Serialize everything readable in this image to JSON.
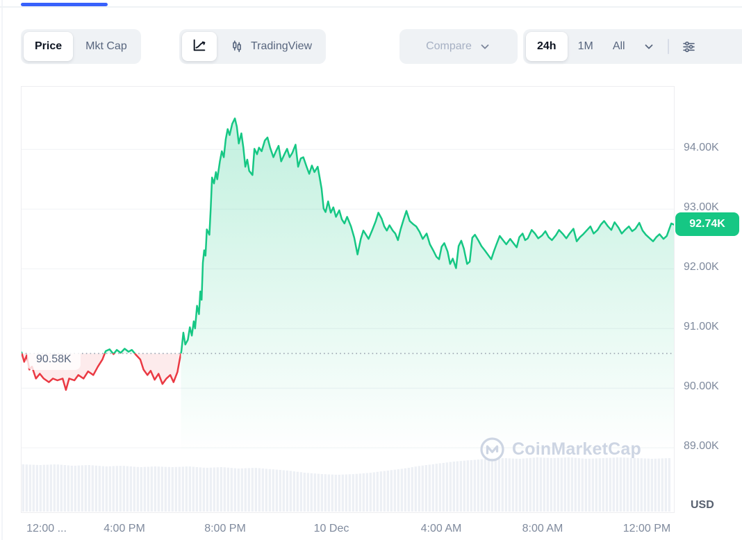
{
  "toolbar": {
    "metric_toggle": {
      "options": [
        "Price",
        "Mkt Cap"
      ],
      "active": "Price"
    },
    "chart_type_toggle": {
      "options": [
        "line-chart",
        "tradingview"
      ],
      "active": "line-chart",
      "tradingview_label": "TradingView"
    },
    "compare": {
      "label": "Compare"
    },
    "range_toggle": {
      "options": [
        "24h",
        "1M",
        "All"
      ],
      "active": "24h"
    }
  },
  "chart_data": {
    "type": "line",
    "unit": "USD",
    "watermark": "CoinMarketCap",
    "ylim": [
      87.92,
      95.05
    ],
    "baseline": {
      "price": 90.58,
      "label": "90.58K"
    },
    "last": {
      "price": 92.74,
      "label": "92.74K"
    },
    "y_ticks": [
      {
        "label": "94.00K",
        "value": 94
      },
      {
        "label": "93.00K",
        "value": 93
      },
      {
        "label": "92.00K",
        "value": 92
      },
      {
        "label": "91.00K",
        "value": 91
      },
      {
        "label": "90.00K",
        "value": 90
      },
      {
        "label": "89.00K",
        "value": 89
      }
    ],
    "x_ticks": [
      {
        "label": "12:00 ...",
        "t": 0.039
      },
      {
        "label": "4:00 PM",
        "t": 0.159
      },
      {
        "label": "8:00 PM",
        "t": 0.313
      },
      {
        "label": "10 Dec",
        "t": 0.476
      },
      {
        "label": "4:00 AM",
        "t": 0.644
      },
      {
        "label": "8:00 AM",
        "t": 0.8
      },
      {
        "label": "12:00 PM",
        "t": 0.959
      }
    ],
    "colors": {
      "up": "#16c784",
      "down": "#ea3943",
      "up_fill_top": "rgba(22,199,132,0.24)",
      "up_fill_bottom": "rgba(22,199,132,0)",
      "down_fill": "rgba(234,57,67,0.10)",
      "grid": "#f0f2f5",
      "volume": "#edf0f5",
      "baseline_dots": "#9aa3b0",
      "accent_blue": "#3861fb"
    },
    "points": [
      [
        0.0,
        90.6
      ],
      [
        0.004,
        90.44
      ],
      [
        0.008,
        90.55
      ],
      [
        0.012,
        90.31
      ],
      [
        0.016,
        90.36
      ],
      [
        0.022,
        90.16
      ],
      [
        0.028,
        90.24
      ],
      [
        0.034,
        90.16
      ],
      [
        0.042,
        90.1
      ],
      [
        0.048,
        90.16
      ],
      [
        0.055,
        90.13
      ],
      [
        0.063,
        90.16
      ],
      [
        0.068,
        89.97
      ],
      [
        0.073,
        90.16
      ],
      [
        0.081,
        90.13
      ],
      [
        0.087,
        90.22
      ],
      [
        0.095,
        90.16
      ],
      [
        0.102,
        90.28
      ],
      [
        0.11,
        90.22
      ],
      [
        0.117,
        90.36
      ],
      [
        0.124,
        90.48
      ],
      [
        0.129,
        90.62
      ],
      [
        0.135,
        90.65
      ],
      [
        0.141,
        90.57
      ],
      [
        0.146,
        90.64
      ],
      [
        0.152,
        90.59
      ],
      [
        0.158,
        90.66
      ],
      [
        0.164,
        90.61
      ],
      [
        0.169,
        90.64
      ],
      [
        0.176,
        90.55
      ],
      [
        0.182,
        90.48
      ],
      [
        0.187,
        90.31
      ],
      [
        0.193,
        90.22
      ],
      [
        0.198,
        90.29
      ],
      [
        0.204,
        90.14
      ],
      [
        0.21,
        90.24
      ],
      [
        0.216,
        90.07
      ],
      [
        0.222,
        90.16
      ],
      [
        0.228,
        90.22
      ],
      [
        0.233,
        90.1
      ],
      [
        0.239,
        90.27
      ],
      [
        0.242,
        90.45
      ],
      [
        0.245,
        90.62
      ],
      [
        0.248,
        90.93
      ],
      [
        0.251,
        90.73
      ],
      [
        0.255,
        90.81
      ],
      [
        0.258,
        91.02
      ],
      [
        0.261,
        90.88
      ],
      [
        0.264,
        91.12
      ],
      [
        0.266,
        91.0
      ],
      [
        0.269,
        91.38
      ],
      [
        0.272,
        91.24
      ],
      [
        0.274,
        91.62
      ],
      [
        0.276,
        91.48
      ],
      [
        0.278,
        92.1
      ],
      [
        0.28,
        92.31
      ],
      [
        0.282,
        92.22
      ],
      [
        0.284,
        92.66
      ],
      [
        0.288,
        92.57
      ],
      [
        0.29,
        93.01
      ],
      [
        0.292,
        93.53
      ],
      [
        0.295,
        93.43
      ],
      [
        0.298,
        93.62
      ],
      [
        0.3,
        93.5
      ],
      [
        0.304,
        93.8
      ],
      [
        0.307,
        93.97
      ],
      [
        0.31,
        93.87
      ],
      [
        0.313,
        94.17
      ],
      [
        0.316,
        94.34
      ],
      [
        0.319,
        94.24
      ],
      [
        0.323,
        94.43
      ],
      [
        0.327,
        94.52
      ],
      [
        0.33,
        94.38
      ],
      [
        0.333,
        94.1
      ],
      [
        0.337,
        94.27
      ],
      [
        0.34,
        94.03
      ],
      [
        0.343,
        93.71
      ],
      [
        0.346,
        93.83
      ],
      [
        0.349,
        93.64
      ],
      [
        0.354,
        93.57
      ],
      [
        0.357,
        94.01
      ],
      [
        0.361,
        93.92
      ],
      [
        0.364,
        94.03
      ],
      [
        0.368,
        93.97
      ],
      [
        0.373,
        94.15
      ],
      [
        0.377,
        94.2
      ],
      [
        0.381,
        94.03
      ],
      [
        0.386,
        93.87
      ],
      [
        0.39,
        93.97
      ],
      [
        0.394,
        94.06
      ],
      [
        0.398,
        93.8
      ],
      [
        0.403,
        93.92
      ],
      [
        0.407,
        94.01
      ],
      [
        0.411,
        93.87
      ],
      [
        0.415,
        93.94
      ],
      [
        0.42,
        94.08
      ],
      [
        0.424,
        93.71
      ],
      [
        0.428,
        93.85
      ],
      [
        0.432,
        93.87
      ],
      [
        0.437,
        93.71
      ],
      [
        0.441,
        93.59
      ],
      [
        0.445,
        93.73
      ],
      [
        0.449,
        93.62
      ],
      [
        0.454,
        93.71
      ],
      [
        0.457,
        93.53
      ],
      [
        0.46,
        93.34
      ],
      [
        0.463,
        93.01
      ],
      [
        0.466,
        92.95
      ],
      [
        0.47,
        93.13
      ],
      [
        0.474,
        92.94
      ],
      [
        0.478,
        93.03
      ],
      [
        0.482,
        92.87
      ],
      [
        0.487,
        92.98
      ],
      [
        0.491,
        92.83
      ],
      [
        0.495,
        92.76
      ],
      [
        0.499,
        92.87
      ],
      [
        0.505,
        92.71
      ],
      [
        0.51,
        92.52
      ],
      [
        0.515,
        92.24
      ],
      [
        0.52,
        92.5
      ],
      [
        0.524,
        92.64
      ],
      [
        0.528,
        92.57
      ],
      [
        0.532,
        92.5
      ],
      [
        0.538,
        92.66
      ],
      [
        0.543,
        92.8
      ],
      [
        0.547,
        92.94
      ],
      [
        0.552,
        92.84
      ],
      [
        0.556,
        92.71
      ],
      [
        0.56,
        92.64
      ],
      [
        0.564,
        92.73
      ],
      [
        0.569,
        92.64
      ],
      [
        0.573,
        92.59
      ],
      [
        0.577,
        92.48
      ],
      [
        0.581,
        92.66
      ],
      [
        0.586,
        92.84
      ],
      [
        0.59,
        92.97
      ],
      [
        0.595,
        92.8
      ],
      [
        0.6,
        92.75
      ],
      [
        0.605,
        92.71
      ],
      [
        0.61,
        92.62
      ],
      [
        0.615,
        92.5
      ],
      [
        0.621,
        92.59
      ],
      [
        0.626,
        92.41
      ],
      [
        0.631,
        92.31
      ],
      [
        0.636,
        92.2
      ],
      [
        0.64,
        92.16
      ],
      [
        0.644,
        92.37
      ],
      [
        0.648,
        92.43
      ],
      [
        0.653,
        92.29
      ],
      [
        0.657,
        92.08
      ],
      [
        0.661,
        92.17
      ],
      [
        0.666,
        92.01
      ],
      [
        0.67,
        92.38
      ],
      [
        0.674,
        92.47
      ],
      [
        0.678,
        92.34
      ],
      [
        0.683,
        92.08
      ],
      [
        0.687,
        92.12
      ],
      [
        0.691,
        92.52
      ],
      [
        0.695,
        92.57
      ],
      [
        0.7,
        92.48
      ],
      [
        0.705,
        92.38
      ],
      [
        0.71,
        92.31
      ],
      [
        0.716,
        92.22
      ],
      [
        0.72,
        92.16
      ],
      [
        0.724,
        92.29
      ],
      [
        0.728,
        92.41
      ],
      [
        0.733,
        92.55
      ],
      [
        0.738,
        92.48
      ],
      [
        0.743,
        92.41
      ],
      [
        0.749,
        92.5
      ],
      [
        0.754,
        92.43
      ],
      [
        0.759,
        92.36
      ],
      [
        0.763,
        92.53
      ],
      [
        0.768,
        92.59
      ],
      [
        0.772,
        92.48
      ],
      [
        0.776,
        92.51
      ],
      [
        0.782,
        92.65
      ],
      [
        0.787,
        92.59
      ],
      [
        0.792,
        92.51
      ],
      [
        0.798,
        92.56
      ],
      [
        0.803,
        92.63
      ],
      [
        0.808,
        92.53
      ],
      [
        0.813,
        92.48
      ],
      [
        0.819,
        92.56
      ],
      [
        0.824,
        92.65
      ],
      [
        0.83,
        92.58
      ],
      [
        0.835,
        92.51
      ],
      [
        0.84,
        92.59
      ],
      [
        0.846,
        92.67
      ],
      [
        0.851,
        92.46
      ],
      [
        0.856,
        92.53
      ],
      [
        0.861,
        92.58
      ],
      [
        0.867,
        92.65
      ],
      [
        0.872,
        92.71
      ],
      [
        0.877,
        92.59
      ],
      [
        0.883,
        92.65
      ],
      [
        0.888,
        92.74
      ],
      [
        0.893,
        92.8
      ],
      [
        0.899,
        92.71
      ],
      [
        0.904,
        92.65
      ],
      [
        0.909,
        92.78
      ],
      [
        0.915,
        92.69
      ],
      [
        0.92,
        92.59
      ],
      [
        0.925,
        92.65
      ],
      [
        0.931,
        92.71
      ],
      [
        0.936,
        92.63
      ],
      [
        0.941,
        92.67
      ],
      [
        0.947,
        92.77
      ],
      [
        0.952,
        92.64
      ],
      [
        0.957,
        92.57
      ],
      [
        0.963,
        92.51
      ],
      [
        0.968,
        92.46
      ],
      [
        0.973,
        92.53
      ],
      [
        0.978,
        92.58
      ],
      [
        0.984,
        92.5
      ],
      [
        0.989,
        92.55
      ],
      [
        0.992,
        92.64
      ],
      [
        0.996,
        92.76
      ],
      [
        1.0,
        92.74
      ]
    ],
    "volume_rel": [
      68,
      67,
      68,
      66,
      67,
      65,
      66,
      64,
      65,
      64,
      65,
      63,
      64,
      62,
      63,
      61,
      59,
      56,
      54,
      53,
      54,
      56,
      59,
      62,
      66,
      69,
      72,
      74,
      76,
      77,
      76,
      78,
      77,
      78,
      76,
      77,
      78,
      77,
      76,
      77
    ]
  }
}
